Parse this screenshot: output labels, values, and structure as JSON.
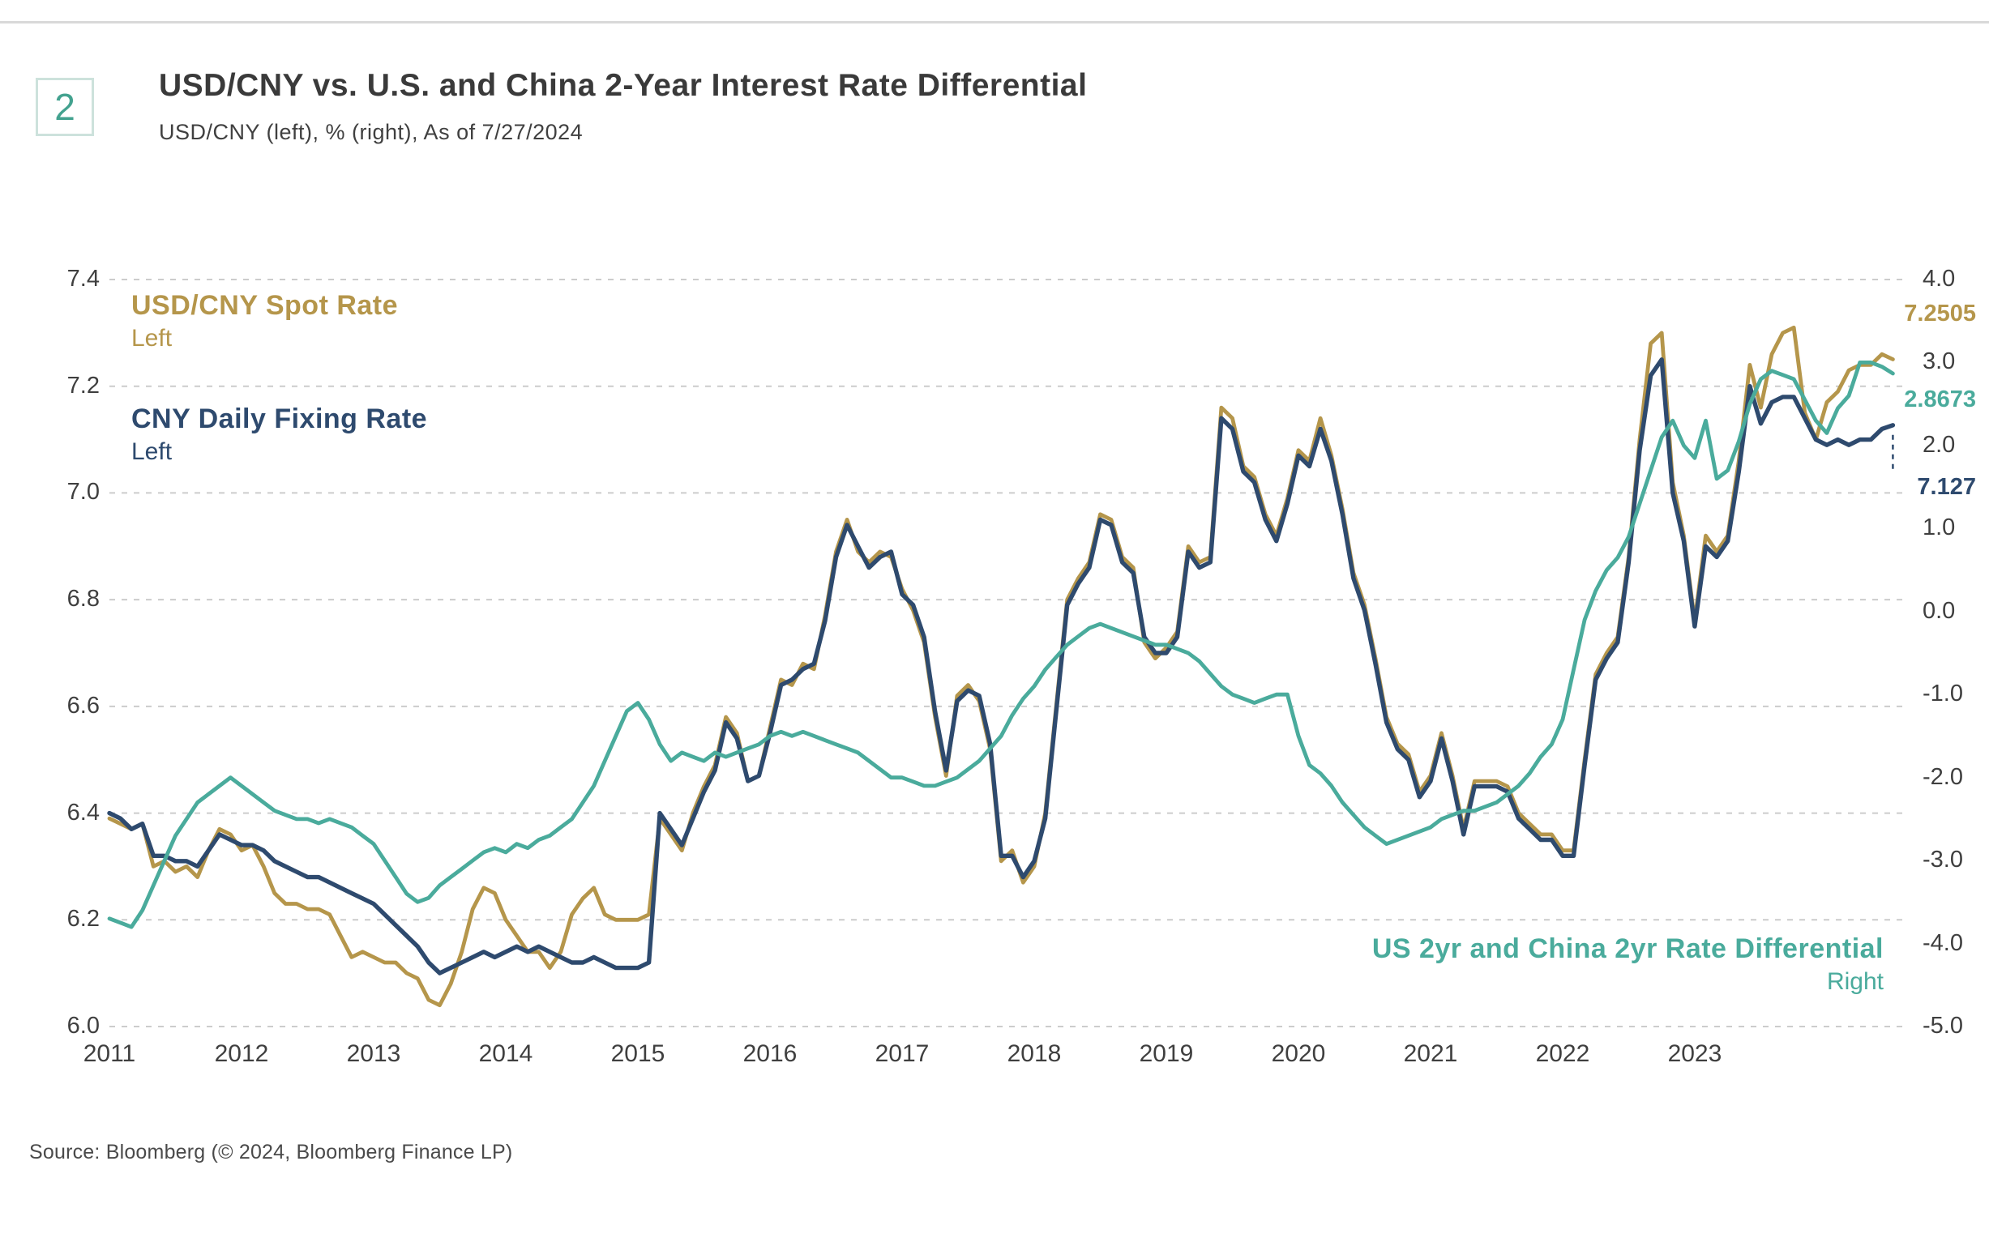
{
  "header": {
    "badge": "2",
    "title": "USD/CNY vs. U.S. and China 2-Year Interest Rate Differential",
    "subtitle": "USD/CNY (left), % (right), As of 7/27/2024"
  },
  "footer": {
    "source": "Source: Bloomberg (© 2024, Bloomberg Finance LP)"
  },
  "chart_data": {
    "type": "line",
    "title": "USD/CNY vs. U.S. and China 2-Year Interest Rate Differential",
    "subtitle": "USD/CNY (left), % (right), As of 7/27/2024",
    "as_of_date": "7/27/2024",
    "grid": "horizontal-dashed",
    "x_start_year": 2011,
    "x_points_per_year": 12,
    "x_span_years": 13.62,
    "x_tick_labels": [
      "2011",
      "2012",
      "2013",
      "2014",
      "2015",
      "2016",
      "2017",
      "2018",
      "2019",
      "2020",
      "2021",
      "2022",
      "2023"
    ],
    "left_axis": {
      "min": 6.0,
      "max": 7.4,
      "tick_values": [
        7.4,
        7.2,
        7.0,
        6.8,
        6.6,
        6.4,
        6.2,
        6.0
      ],
      "tick_labels": [
        "7.4",
        "7.2",
        "7.0",
        "6.8",
        "6.6",
        "6.4",
        "6.2",
        "6.0"
      ]
    },
    "right_axis": {
      "min": -5.0,
      "max": 4.0,
      "tick_values": [
        4,
        3,
        2,
        1,
        0,
        -1,
        -2,
        -3,
        -4,
        -5
      ],
      "tick_labels": [
        "4.0",
        "3.0",
        "2.0",
        "1.0",
        "0.0",
        "-1.0",
        "-2.0",
        "-3.0",
        "-4.0",
        "-5.0"
      ]
    },
    "series": [
      {
        "id": "spot",
        "legend_label": "USD/CNY Spot Rate",
        "side_label": "Left",
        "axis": "left",
        "color": "#b5964b",
        "end_label": "7.2505",
        "values": [
          6.39,
          6.38,
          6.37,
          6.38,
          6.3,
          6.31,
          6.29,
          6.3,
          6.28,
          6.33,
          6.37,
          6.36,
          6.33,
          6.34,
          6.3,
          6.25,
          6.23,
          6.23,
          6.22,
          6.22,
          6.21,
          6.17,
          6.13,
          6.14,
          6.13,
          6.12,
          6.12,
          6.1,
          6.09,
          6.05,
          6.04,
          6.08,
          6.14,
          6.22,
          6.26,
          6.25,
          6.2,
          6.17,
          6.14,
          6.14,
          6.11,
          6.14,
          6.21,
          6.24,
          6.26,
          6.21,
          6.2,
          6.2,
          6.2,
          6.21,
          6.39,
          6.36,
          6.33,
          6.4,
          6.45,
          6.49,
          6.58,
          6.55,
          6.46,
          6.47,
          6.56,
          6.65,
          6.64,
          6.68,
          6.67,
          6.77,
          6.89,
          6.95,
          6.89,
          6.87,
          6.89,
          6.88,
          6.82,
          6.78,
          6.72,
          6.58,
          6.47,
          6.62,
          6.64,
          6.61,
          6.52,
          6.31,
          6.33,
          6.27,
          6.3,
          6.4,
          6.6,
          6.8,
          6.84,
          6.87,
          6.96,
          6.95,
          6.88,
          6.86,
          6.72,
          6.69,
          6.71,
          6.74,
          6.9,
          6.87,
          6.88,
          7.16,
          7.14,
          7.05,
          7.03,
          6.96,
          6.92,
          6.99,
          7.08,
          7.06,
          7.14,
          7.07,
          6.97,
          6.85,
          6.79,
          6.69,
          6.58,
          6.53,
          6.51,
          6.44,
          6.47,
          6.55,
          6.47,
          6.37,
          6.46,
          6.46,
          6.46,
          6.45,
          6.4,
          6.38,
          6.36,
          6.36,
          6.33,
          6.33,
          6.5,
          6.66,
          6.7,
          6.73,
          6.88,
          7.1,
          7.28,
          7.3,
          7.02,
          6.92,
          6.76,
          6.92,
          6.89,
          6.92,
          7.06,
          7.24,
          7.16,
          7.26,
          7.3,
          7.31,
          7.15,
          7.1,
          7.17,
          7.19,
          7.23,
          7.24,
          7.24,
          7.26,
          7.2505
        ]
      },
      {
        "id": "fixing",
        "legend_label": "CNY Daily Fixing Rate",
        "side_label": "Left",
        "axis": "left",
        "color": "#2e4a6e",
        "end_label": "7.127",
        "values": [
          6.4,
          6.39,
          6.37,
          6.38,
          6.32,
          6.32,
          6.31,
          6.31,
          6.3,
          6.33,
          6.36,
          6.35,
          6.34,
          6.34,
          6.33,
          6.31,
          6.3,
          6.29,
          6.28,
          6.28,
          6.27,
          6.26,
          6.25,
          6.24,
          6.23,
          6.21,
          6.19,
          6.17,
          6.15,
          6.12,
          6.1,
          6.11,
          6.12,
          6.13,
          6.14,
          6.13,
          6.14,
          6.15,
          6.14,
          6.15,
          6.14,
          6.13,
          6.12,
          6.12,
          6.13,
          6.12,
          6.11,
          6.11,
          6.11,
          6.12,
          6.4,
          6.37,
          6.34,
          6.39,
          6.44,
          6.48,
          6.57,
          6.54,
          6.46,
          6.47,
          6.55,
          6.64,
          6.65,
          6.67,
          6.68,
          6.76,
          6.88,
          6.94,
          6.9,
          6.86,
          6.88,
          6.89,
          6.81,
          6.79,
          6.73,
          6.59,
          6.48,
          6.61,
          6.63,
          6.62,
          6.53,
          6.32,
          6.32,
          6.28,
          6.31,
          6.39,
          6.59,
          6.79,
          6.83,
          6.86,
          6.95,
          6.94,
          6.87,
          6.85,
          6.73,
          6.7,
          6.7,
          6.73,
          6.89,
          6.86,
          6.87,
          7.14,
          7.12,
          7.04,
          7.02,
          6.95,
          6.91,
          6.98,
          7.07,
          7.05,
          7.12,
          7.06,
          6.96,
          6.84,
          6.78,
          6.68,
          6.57,
          6.52,
          6.5,
          6.43,
          6.46,
          6.54,
          6.46,
          6.36,
          6.45,
          6.45,
          6.45,
          6.44,
          6.39,
          6.37,
          6.35,
          6.35,
          6.32,
          6.32,
          6.49,
          6.65,
          6.69,
          6.72,
          6.87,
          7.08,
          7.22,
          7.25,
          7.0,
          6.91,
          6.75,
          6.9,
          6.88,
          6.91,
          7.04,
          7.2,
          7.13,
          7.17,
          7.18,
          7.18,
          7.14,
          7.1,
          7.09,
          7.1,
          7.09,
          7.1,
          7.1,
          7.12,
          7.127
        ]
      },
      {
        "id": "differential",
        "legend_label": "US 2yr and China 2yr Rate Differential",
        "side_label": "Right",
        "axis": "right",
        "color": "#4aab9c",
        "end_label": "2.8673",
        "values": [
          -3.7,
          -3.75,
          -3.8,
          -3.6,
          -3.3,
          -3.0,
          -2.7,
          -2.5,
          -2.3,
          -2.2,
          -2.1,
          -2.0,
          -2.1,
          -2.2,
          -2.3,
          -2.4,
          -2.45,
          -2.5,
          -2.5,
          -2.55,
          -2.5,
          -2.55,
          -2.6,
          -2.7,
          -2.8,
          -3.0,
          -3.2,
          -3.4,
          -3.5,
          -3.45,
          -3.3,
          -3.2,
          -3.1,
          -3.0,
          -2.9,
          -2.85,
          -2.9,
          -2.8,
          -2.85,
          -2.75,
          -2.7,
          -2.6,
          -2.5,
          -2.3,
          -2.1,
          -1.8,
          -1.5,
          -1.2,
          -1.1,
          -1.3,
          -1.6,
          -1.8,
          -1.7,
          -1.75,
          -1.8,
          -1.7,
          -1.75,
          -1.7,
          -1.65,
          -1.6,
          -1.5,
          -1.45,
          -1.5,
          -1.45,
          -1.5,
          -1.55,
          -1.6,
          -1.65,
          -1.7,
          -1.8,
          -1.9,
          -2.0,
          -2.0,
          -2.05,
          -2.1,
          -2.1,
          -2.05,
          -2.0,
          -1.9,
          -1.8,
          -1.65,
          -1.5,
          -1.25,
          -1.05,
          -0.9,
          -0.7,
          -0.55,
          -0.4,
          -0.3,
          -0.2,
          -0.15,
          -0.2,
          -0.25,
          -0.3,
          -0.35,
          -0.4,
          -0.4,
          -0.45,
          -0.5,
          -0.6,
          -0.75,
          -0.9,
          -1.0,
          -1.05,
          -1.1,
          -1.05,
          -1.0,
          -1.0,
          -1.5,
          -1.85,
          -1.95,
          -2.1,
          -2.3,
          -2.45,
          -2.6,
          -2.7,
          -2.8,
          -2.75,
          -2.7,
          -2.65,
          -2.6,
          -2.5,
          -2.45,
          -2.4,
          -2.4,
          -2.35,
          -2.3,
          -2.2,
          -2.1,
          -1.95,
          -1.75,
          -1.6,
          -1.3,
          -0.7,
          -0.1,
          0.25,
          0.5,
          0.65,
          0.9,
          1.3,
          1.7,
          2.1,
          2.3,
          2.0,
          1.85,
          2.3,
          1.6,
          1.7,
          2.05,
          2.5,
          2.8,
          2.9,
          2.85,
          2.8,
          2.55,
          2.3,
          2.15,
          2.45,
          2.6,
          3.0,
          3.0,
          2.95,
          2.8673
        ]
      }
    ]
  }
}
